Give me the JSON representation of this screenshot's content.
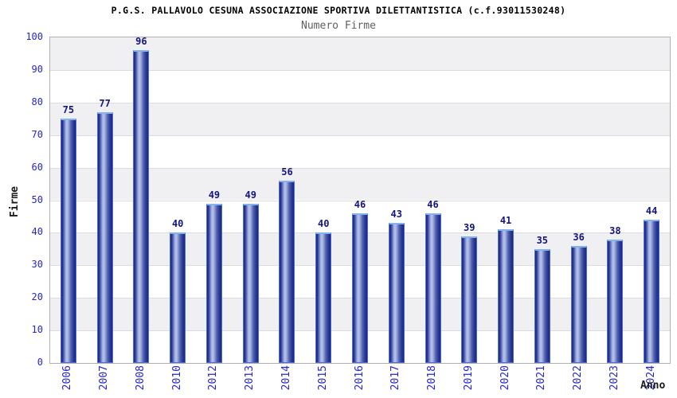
{
  "header": {
    "title": "P.G.S. PALLAVOLO CESUNA ASSOCIAZIONE SPORTIVA DILETTANTISTICA (c.f.93011530248)",
    "subtitle": "Numero Firme"
  },
  "chart_data": {
    "type": "bar",
    "title": "P.G.S. PALLAVOLO CESUNA ASSOCIAZIONE SPORTIVA DILETTANTISTICA (c.f.93011530248)",
    "subtitle": "Numero Firme",
    "xlabel": "Anno",
    "ylabel": "Firme",
    "categories": [
      "2006",
      "2007",
      "2008",
      "2010",
      "2012",
      "2013",
      "2014",
      "2015",
      "2016",
      "2017",
      "2018",
      "2019",
      "2020",
      "2021",
      "2022",
      "2023",
      "2024"
    ],
    "values": [
      75,
      77,
      96,
      40,
      49,
      49,
      56,
      40,
      46,
      43,
      46,
      39,
      41,
      35,
      36,
      38,
      44
    ],
    "ylim": [
      0,
      100
    ],
    "ytick_step": 10,
    "grid": "horizontal-bands-alternating",
    "legend": "none",
    "colors": {
      "bar_dark": "#1b2583",
      "bar_light": "#b8c2ea",
      "bar_border": "#4a6fd8",
      "bar_top_edge": "#82b2f0",
      "tick_label": "#2626cf",
      "value_label": "#141483",
      "band_gray": "#f0f0f2",
      "band_white": "#ffffff",
      "gridline": "#dcdcdc",
      "plot_border": "#b0b0b0",
      "subtitle_gray": "#5f5f5f"
    }
  }
}
